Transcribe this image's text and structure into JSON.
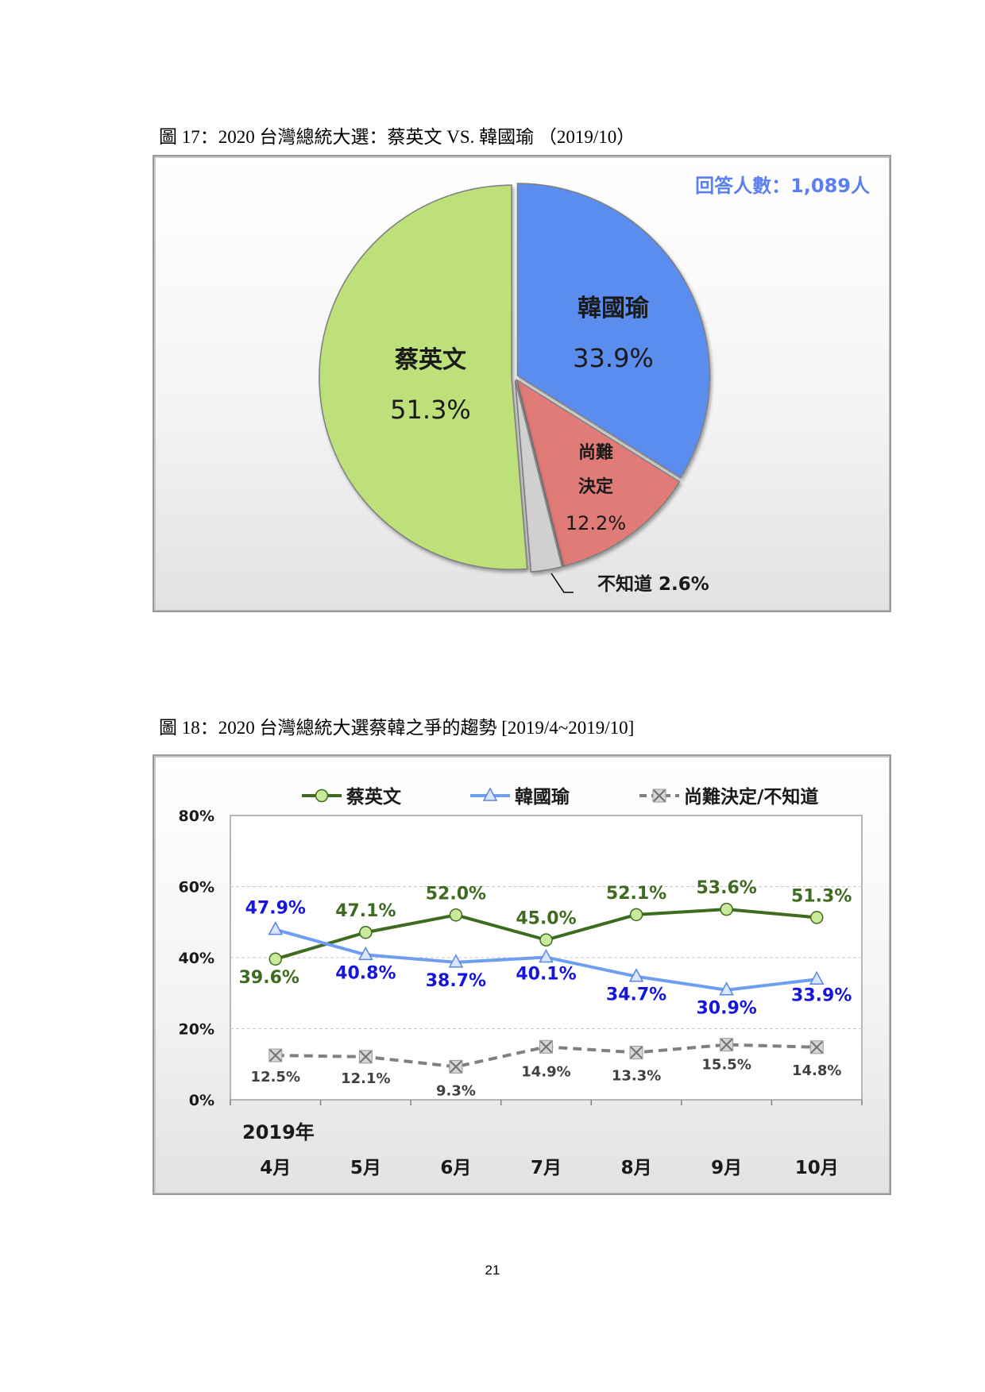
{
  "page_number": "21",
  "figure17": {
    "caption": "圖 17：2020 台灣總統大選：蔡英文 VS. 韓國瑜 （2019/10）"
  },
  "figure18": {
    "caption": "圖 18：2020 台灣總統大選蔡韓之爭的趨勢 [2019/4~2019/10]"
  },
  "chart_data": [
    {
      "type": "pie",
      "respondents_note": "回答人數：1,089人",
      "slices": [
        {
          "label": "韓國瑜",
          "value": 33.9,
          "value_label": "33.9%",
          "color": "#5b8def"
        },
        {
          "label": "尚難決定",
          "value": 12.2,
          "value_label": "12.2%",
          "color": "#e07b78"
        },
        {
          "label": "不知道",
          "value": 2.6,
          "value_label": "2.6%",
          "color": "#d0d0d0"
        },
        {
          "label": "蔡英文",
          "value": 51.3,
          "value_label": "51.3%",
          "color": "#bde07a"
        }
      ],
      "label_lines": {
        "undecided_line1": "尚難",
        "undecided_line2": "決定",
        "dont_know": "不知道 2.6%"
      }
    },
    {
      "type": "line",
      "year_label": "2019年",
      "categories": [
        "4月",
        "5月",
        "6月",
        "7月",
        "8月",
        "9月",
        "10月"
      ],
      "ylim": [
        0,
        80
      ],
      "yticks": [
        "0%",
        "20%",
        "40%",
        "60%",
        "80%"
      ],
      "grid": true,
      "legend_position": "top",
      "series": [
        {
          "name": "蔡英文",
          "values": [
            39.6,
            47.1,
            52.0,
            45.0,
            52.1,
            53.6,
            51.3
          ],
          "labels": [
            "39.6%",
            "47.1%",
            "52.0%",
            "45.0%",
            "52.1%",
            "53.6%",
            "51.3%"
          ],
          "color": "#3d6b1f",
          "label_color": "#3d6b1f",
          "marker": "circle",
          "dash": false
        },
        {
          "name": "韓國瑜",
          "values": [
            47.9,
            40.8,
            38.7,
            40.1,
            34.7,
            30.9,
            33.9
          ],
          "labels": [
            "47.9%",
            "40.8%",
            "38.7%",
            "40.1%",
            "34.7%",
            "30.9%",
            "33.9%"
          ],
          "color": "#6f9ef0",
          "label_color": "#1515dd",
          "marker": "triangle",
          "dash": false
        },
        {
          "name": "尚難決定/不知道",
          "values": [
            12.5,
            12.1,
            9.3,
            14.9,
            13.3,
            15.5,
            14.8
          ],
          "labels": [
            "12.5%",
            "12.1%",
            "9.3%",
            "14.9%",
            "13.3%",
            "15.5%",
            "14.8%"
          ],
          "color": "#808080",
          "label_color": "#404040",
          "marker": "x",
          "dash": true
        }
      ]
    }
  ]
}
